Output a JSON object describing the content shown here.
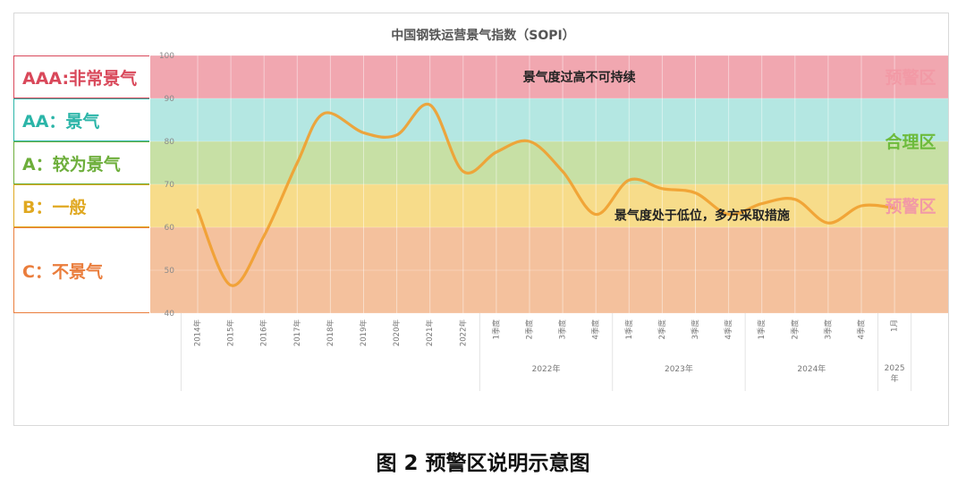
{
  "caption": "图 2 预警区说明示意图",
  "chart_data": {
    "type": "line",
    "title": "中国钢铁运营景气指数（SOPI）",
    "ylim": [
      40,
      100
    ],
    "yticks": [
      40,
      50,
      60,
      70,
      80,
      90,
      100
    ],
    "x_labels": [
      "2014年",
      "2015年",
      "2016年",
      "2017年",
      "2018年",
      "2019年",
      "2020年",
      "2021年",
      "2022年",
      "1季度",
      "2季度",
      "3季度",
      "4季度",
      "1季度",
      "2季度",
      "3季度",
      "4季度",
      "1季度",
      "2季度",
      "3季度",
      "4季度",
      "1月"
    ],
    "year_groups": [
      {
        "label": "2022年",
        "span": [
          9,
          12
        ]
      },
      {
        "label": "2023年",
        "span": [
          13,
          16
        ]
      },
      {
        "label": "2024年",
        "span": [
          17,
          20
        ]
      },
      {
        "label": "2025年",
        "span": [
          21,
          21
        ]
      }
    ],
    "series": [
      {
        "color": "#f0a030",
        "points": [
          [
            0,
            64
          ],
          [
            1,
            46.5
          ],
          [
            2,
            58
          ],
          [
            3,
            75
          ],
          [
            3.8,
            86.5
          ],
          [
            5,
            82
          ],
          [
            6,
            81.5
          ],
          [
            7,
            88.5
          ],
          [
            8,
            73
          ],
          [
            9,
            77.5
          ],
          [
            10,
            80
          ],
          [
            11,
            73
          ],
          [
            12,
            63
          ],
          [
            13,
            71
          ],
          [
            14,
            69
          ],
          [
            15,
            68
          ],
          [
            16,
            63
          ],
          [
            17,
            65.5
          ],
          [
            18,
            66.5
          ],
          [
            19,
            61
          ],
          [
            20,
            65
          ],
          [
            21,
            64.5
          ]
        ]
      }
    ],
    "bands": [
      {
        "label": "AAA:非常景气",
        "from": 90,
        "to": 100,
        "color": "#f1a7b0",
        "label_color": "#d9485a"
      },
      {
        "label": "AA：景气",
        "from": 80,
        "to": 90,
        "color": "#b4e7e2",
        "label_color": "#2bb5a8"
      },
      {
        "label": "A：较为景气",
        "from": 70,
        "to": 80,
        "color": "#c7e0a5",
        "label_color": "#6dae3b"
      },
      {
        "label": "B：一般",
        "from": 60,
        "to": 70,
        "color": "#f7dc8a",
        "label_color": "#e0a820"
      },
      {
        "label": "C：不景气",
        "from": 40,
        "to": 60,
        "color": "#f4c19d",
        "label_color": "#ea7d3c"
      }
    ],
    "zones": [
      {
        "label": "预警区",
        "color": "#f29aa6",
        "value": 95
      },
      {
        "label": "合理区",
        "color": "#6dbb3c",
        "value": 80
      },
      {
        "label": "预警区",
        "color": "#f29aa6",
        "value": 65
      }
    ],
    "annotations": [
      {
        "text": "景气度过高不可持续",
        "x": 11.5,
        "y": 95
      },
      {
        "text": "景气度处于低位，多方采取措施",
        "x": 15.2,
        "y": 62.8
      }
    ]
  }
}
